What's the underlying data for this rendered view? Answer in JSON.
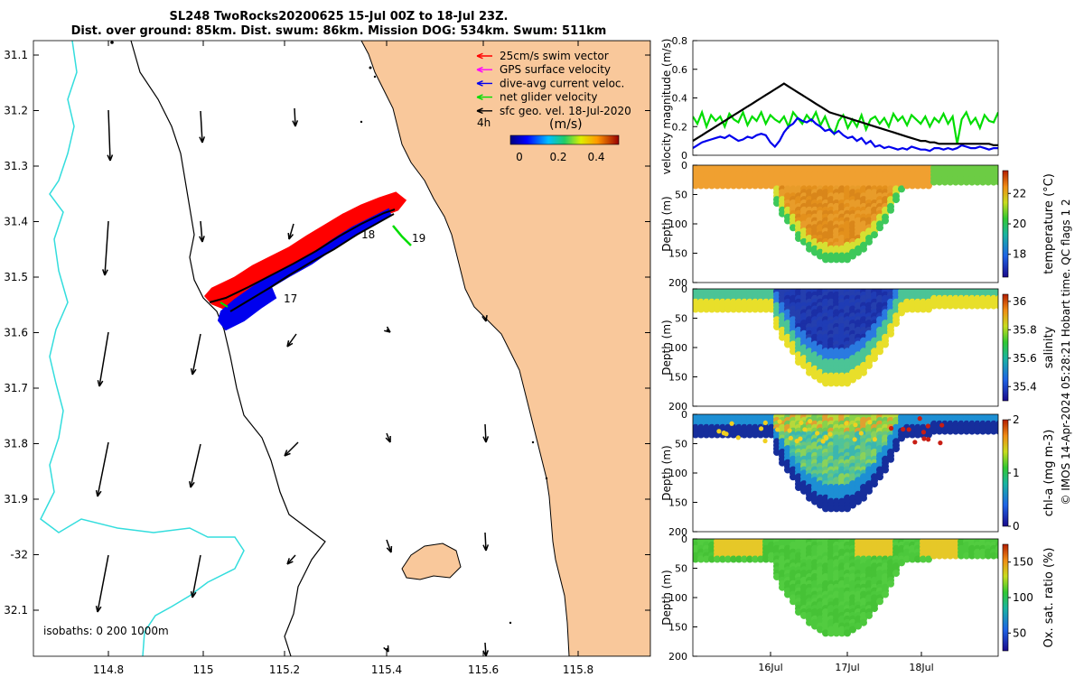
{
  "title": {
    "line1": "SL248 TwoRocks20200625 15-Jul 00Z to 18-Jul 23Z.",
    "line2": "Dist. over ground: 85km. Dist. swum: 86km. Mission DOG: 534km. Swum: 511km"
  },
  "colors": {
    "land": "#f9c89b",
    "isobath": "#33dddd",
    "track_blue": "#0000ee",
    "swim_red": "#ff0000",
    "net_green": "#00dd00",
    "gps_magenta": "#ff00ff"
  },
  "map": {
    "lon_ticks": [
      "114.8",
      "115",
      "115.2",
      "115.4",
      "115.6",
      "115.8"
    ],
    "lat_ticks": [
      "31.1",
      "31.2",
      "31.3",
      "31.4",
      "31.5",
      "31.6",
      "31.7",
      "31.8",
      "31.9",
      "-32",
      "32.1"
    ],
    "legend": [
      {
        "label": "25cm/s swim vector",
        "color": "#ff0000"
      },
      {
        "label": "GPS surface velocity",
        "color": "#ff00ff"
      },
      {
        "label": "dive-avg current veloc.",
        "color": "#0000ee"
      },
      {
        "label": "net glider velocity",
        "color": "#00dd00"
      },
      {
        "label": "sfc geo. vel. 18-Jul-2020",
        "color": "#000000"
      }
    ],
    "time_step": "4h",
    "colorbar": {
      "unit": "(m/s)",
      "ticks": [
        "0",
        "0.2",
        "0.4"
      ]
    },
    "day_labels": [
      "17",
      "18",
      "19"
    ],
    "isobath_label": "isobaths: 0   200  1000m"
  },
  "chart_data": [
    {
      "type": "line",
      "title": "",
      "ylabel": "velocity magnitude (m/s)",
      "ylim": [
        0,
        0.8
      ],
      "yticks": [
        "0",
        "0.2",
        "0.4",
        "0.6",
        "0.8"
      ],
      "series": [
        {
          "name": "net glider velocity",
          "color": "#00dd00",
          "values": [
            0.27,
            0.22,
            0.3,
            0.2,
            0.28,
            0.24,
            0.27,
            0.2,
            0.29,
            0.25,
            0.23,
            0.3,
            0.21,
            0.27,
            0.24,
            0.3,
            0.22,
            0.28,
            0.25,
            0.23,
            0.27,
            0.2,
            0.3,
            0.26,
            0.22,
            0.28,
            0.24,
            0.3,
            0.21,
            0.27,
            0.19,
            0.15,
            0.24,
            0.28,
            0.19,
            0.25,
            0.2,
            0.28,
            0.18,
            0.25,
            0.27,
            0.22,
            0.26,
            0.2,
            0.29,
            0.24,
            0.27,
            0.21,
            0.28,
            0.25,
            0.22,
            0.27,
            0.2,
            0.26,
            0.23,
            0.29,
            0.22,
            0.27,
            0.08,
            0.25,
            0.3,
            0.22,
            0.26,
            0.19,
            0.28,
            0.24,
            0.23,
            0.3
          ]
        },
        {
          "name": "dive-avg current veloc.",
          "color": "#0000ee",
          "values": [
            0.05,
            0.07,
            0.09,
            0.1,
            0.11,
            0.12,
            0.13,
            0.12,
            0.14,
            0.12,
            0.1,
            0.11,
            0.13,
            0.12,
            0.14,
            0.15,
            0.14,
            0.09,
            0.06,
            0.1,
            0.16,
            0.2,
            0.22,
            0.26,
            0.24,
            0.23,
            0.25,
            0.22,
            0.2,
            0.17,
            0.18,
            0.15,
            0.17,
            0.14,
            0.12,
            0.13,
            0.1,
            0.12,
            0.08,
            0.1,
            0.06,
            0.07,
            0.05,
            0.06,
            0.05,
            0.04,
            0.05,
            0.04,
            0.06,
            0.05,
            0.04,
            0.04,
            0.03,
            0.05,
            0.05,
            0.04,
            0.05,
            0.04,
            0.05,
            0.07,
            0.06,
            0.05,
            0.05,
            0.06,
            0.05,
            0.04,
            0.05,
            0.05
          ]
        },
        {
          "name": "GPS surface velocity",
          "color": "#000000",
          "values": [
            0.1,
            0.12,
            0.14,
            0.16,
            0.18,
            0.2,
            0.22,
            0.24,
            0.26,
            0.28,
            0.3,
            0.32,
            0.34,
            0.36,
            0.38,
            0.4,
            0.42,
            0.44,
            0.46,
            0.48,
            0.5,
            0.48,
            0.46,
            0.44,
            0.42,
            0.4,
            0.38,
            0.36,
            0.34,
            0.32,
            0.3,
            0.29,
            0.28,
            0.27,
            0.26,
            0.25,
            0.24,
            0.23,
            0.22,
            0.21,
            0.2,
            0.19,
            0.18,
            0.17,
            0.16,
            0.15,
            0.14,
            0.13,
            0.12,
            0.11,
            0.1,
            0.1,
            0.09,
            0.09,
            0.08,
            0.08,
            0.08,
            0.08,
            0.08,
            0.08,
            0.08,
            0.08,
            0.08,
            0.08,
            0.08,
            0.08,
            0.07,
            0.07
          ]
        }
      ]
    },
    {
      "type": "heatmap",
      "variable": "temperature",
      "ylabel": "Depth (m)",
      "clabel": "temperature (°C)",
      "clim": [
        16.5,
        23.5
      ],
      "cticks": [
        "18",
        "20",
        "22"
      ],
      "ylim": [
        200,
        0
      ],
      "yticks": [
        "0",
        "50",
        "100",
        "150",
        "200"
      ]
    },
    {
      "type": "heatmap",
      "variable": "salinity",
      "ylabel": "Depth (m)",
      "clabel": "salinity",
      "clim": [
        35.3,
        36.05
      ],
      "cticks": [
        "35.4",
        "35.6",
        "35.8",
        "36"
      ],
      "ylim": [
        200,
        0
      ],
      "yticks": [
        "0",
        "50",
        "100",
        "150",
        "200"
      ]
    },
    {
      "type": "heatmap",
      "variable": "chl-a",
      "ylabel": "Depth (m)",
      "clabel": "chl-a (mg m-3)",
      "clim": [
        0,
        2
      ],
      "cticks": [
        "0",
        "1",
        "2"
      ],
      "ylim": [
        200,
        0
      ],
      "yticks": [
        "0",
        "50",
        "100",
        "150",
        "200"
      ]
    },
    {
      "type": "heatmap",
      "variable": "oxygen",
      "ylabel": "Depth (m)",
      "clabel": "Ox. sat. ratio (%)",
      "clim": [
        25,
        175
      ],
      "cticks": [
        "50",
        "100",
        "150"
      ],
      "ylim": [
        200,
        0
      ],
      "yticks": [
        "0",
        "50",
        "100",
        "150",
        "200"
      ],
      "xlabels": [
        "16Jul",
        "17Jul",
        "18Jul"
      ]
    }
  ],
  "watermark": "© IMOS 14-Apr-2024 05:28:21 Hobart time. QC flags 1  2"
}
